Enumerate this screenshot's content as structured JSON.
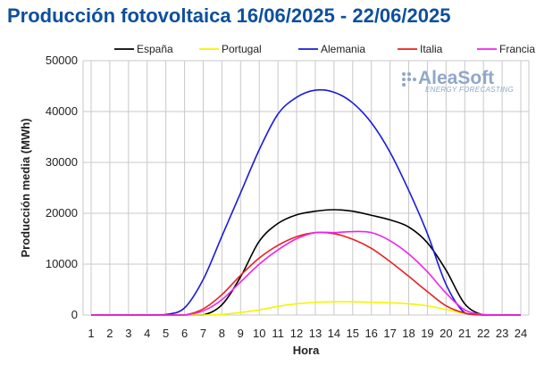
{
  "chart_data": {
    "type": "line",
    "title": "Producción fotovoltaica 16/06/2025 - 22/06/2025",
    "xlabel": "Hora",
    "ylabel": "Producción media (MWh)",
    "x": [
      1,
      2,
      3,
      4,
      5,
      6,
      7,
      8,
      9,
      10,
      11,
      12,
      13,
      14,
      15,
      16,
      17,
      18,
      19,
      20,
      21,
      22,
      23,
      24
    ],
    "ylim": [
      0,
      50000
    ],
    "yticks": [
      0,
      10000,
      20000,
      30000,
      40000,
      50000
    ],
    "grid": true,
    "legend_position": "top",
    "series": [
      {
        "name": "España",
        "color": "#000000",
        "values": [
          0,
          0,
          0,
          0,
          0,
          0,
          0,
          2000,
          7500,
          14500,
          18000,
          19700,
          20400,
          20700,
          20400,
          19600,
          18700,
          17300,
          14200,
          8800,
          2200,
          0,
          0,
          0
        ]
      },
      {
        "name": "Portugal",
        "color": "#f5f500",
        "values": [
          0,
          0,
          0,
          0,
          0,
          0,
          0,
          100,
          500,
          1000,
          1700,
          2200,
          2500,
          2600,
          2600,
          2500,
          2400,
          2200,
          1800,
          1100,
          300,
          0,
          0,
          0
        ]
      },
      {
        "name": "Alemania",
        "color": "#1a1adc",
        "values": [
          0,
          0,
          0,
          0,
          100,
          1400,
          7000,
          15500,
          24000,
          32500,
          39500,
          42800,
          44200,
          43800,
          41700,
          37800,
          32000,
          24500,
          16000,
          6000,
          400,
          0,
          0,
          0
        ]
      },
      {
        "name": "Italia",
        "color": "#e82020",
        "values": [
          0,
          0,
          0,
          0,
          0,
          0,
          1200,
          4000,
          7800,
          11200,
          13700,
          15400,
          16200,
          16000,
          14900,
          13100,
          10500,
          7600,
          4600,
          1800,
          400,
          0,
          0,
          0
        ]
      },
      {
        "name": "Francia",
        "color": "#ee22ee",
        "values": [
          0,
          0,
          0,
          0,
          0,
          0,
          800,
          3000,
          6500,
          10000,
          12800,
          15000,
          16200,
          16200,
          16400,
          16200,
          14600,
          12000,
          8500,
          4300,
          1000,
          100,
          0,
          0
        ]
      }
    ]
  },
  "logo": {
    "brand": "AleaSoft",
    "tagline": "ENERGY FORECASTING"
  }
}
